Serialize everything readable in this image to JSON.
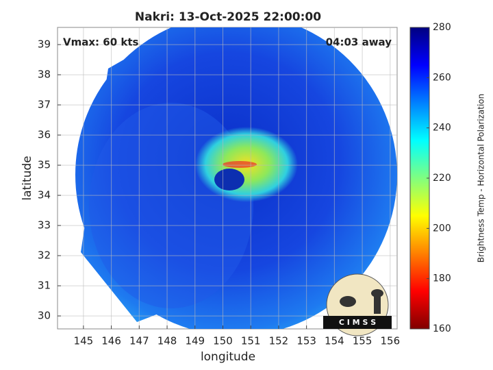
{
  "chart_data": {
    "type": "image",
    "title": "Nakri: 13-Oct-2025 22:00:00",
    "xlabel": "longitude",
    "ylabel": "latitude",
    "xlim": [
      144.07,
      156.25
    ],
    "xticks": [
      145,
      146,
      147,
      148,
      149,
      150,
      151,
      152,
      153,
      154,
      155,
      156
    ],
    "ylim": [
      29.57,
      39.57
    ],
    "yticks": [
      30,
      31,
      32,
      33,
      34,
      35,
      36,
      37,
      38,
      39
    ],
    "grid": true,
    "annotations": [
      "Vmax: 60 kts",
      "04:03 away"
    ],
    "logo": "C I M S S",
    "colorbar": {
      "label": "Brightness Temp - Horizontal Polarization",
      "colormap": "jet",
      "lim": [
        160,
        280
      ],
      "ticks": [
        160,
        180,
        200,
        220,
        240,
        260,
        280
      ]
    }
  }
}
